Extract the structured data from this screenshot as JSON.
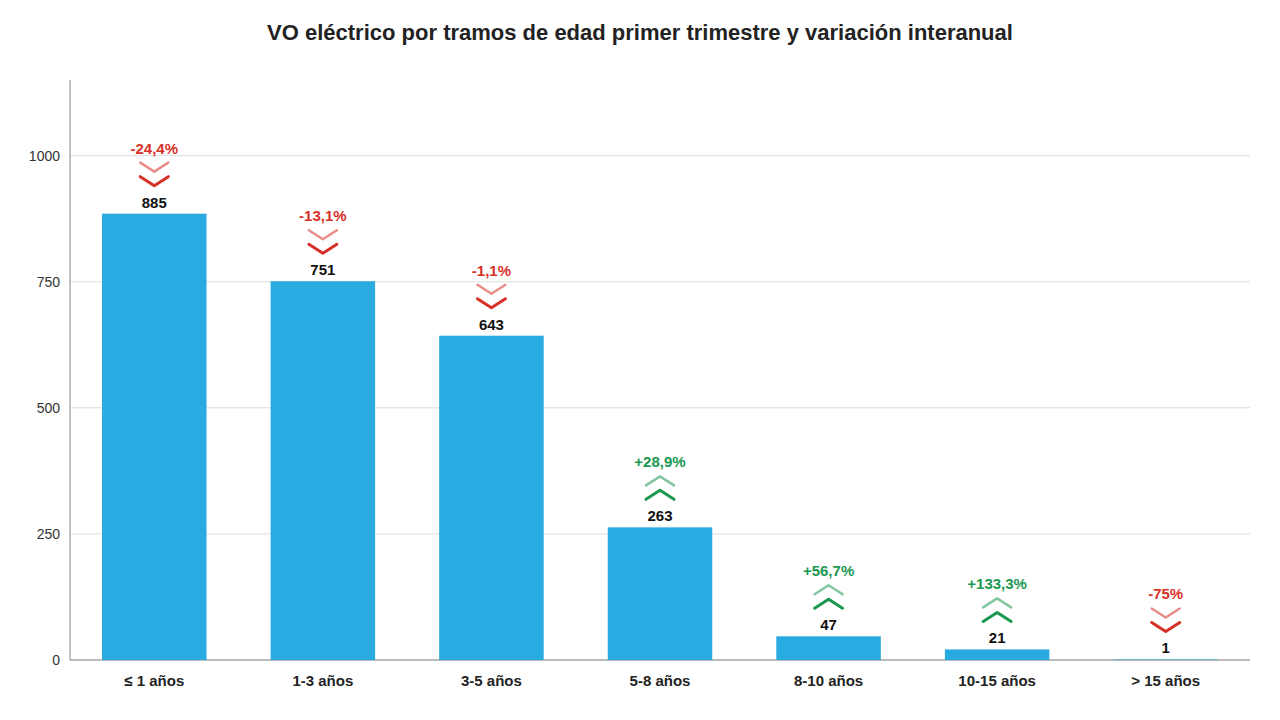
{
  "chart_data": {
    "type": "bar",
    "title": "VO eléctrico por tramos de edad primer trimestre y variación interanual",
    "categories": [
      "≤ 1 años",
      "1-3 años",
      "3-5 años",
      "5-8 años",
      "8-10 años",
      "10-15 años",
      "> 15 años"
    ],
    "values": [
      885,
      751,
      643,
      263,
      47,
      21,
      1
    ],
    "color": "#29ABE2",
    "ylim": [
      0,
      1150
    ],
    "yticks": [
      0,
      250,
      500,
      750,
      1000
    ],
    "grid": true,
    "data_labels": true,
    "changes": [
      -24.4,
      -13.1,
      -1.1,
      28.9,
      56.7,
      133.3,
      -75
    ],
    "change_labels": [
      "-24,4%",
      "-13,1%",
      "-1,1%",
      "+28,9%",
      "+56,7%",
      "+133,3%",
      "-75%"
    ]
  }
}
